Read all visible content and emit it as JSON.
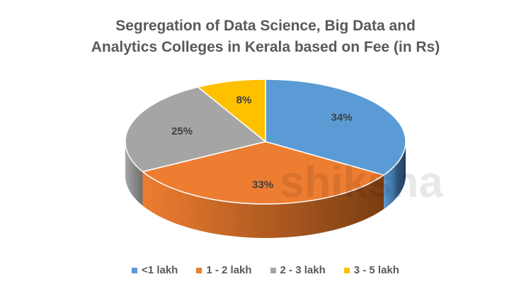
{
  "chart_data": {
    "type": "pie",
    "title_line1": "Segregation of Data Science, Big Data and",
    "title_line2": "Analytics Colleges in Kerala based on Fee (in Rs)",
    "categories": [
      "<1 lakh",
      "1 - 2 lakh",
      "2 - 3 lakh",
      "3 - 5 lakh"
    ],
    "values": [
      34,
      33,
      25,
      8
    ],
    "labels": [
      "34%",
      "33%",
      "25%",
      "8%"
    ],
    "colors": [
      "#5B9BD5",
      "#ED7D31",
      "#A5A5A5",
      "#FFC000"
    ],
    "side_colors": [
      "#1F3B5A",
      "#7A3D12",
      "#6E6E6E",
      "#8C6A00"
    ],
    "legend_position": "bottom",
    "watermark": "shiksha"
  }
}
